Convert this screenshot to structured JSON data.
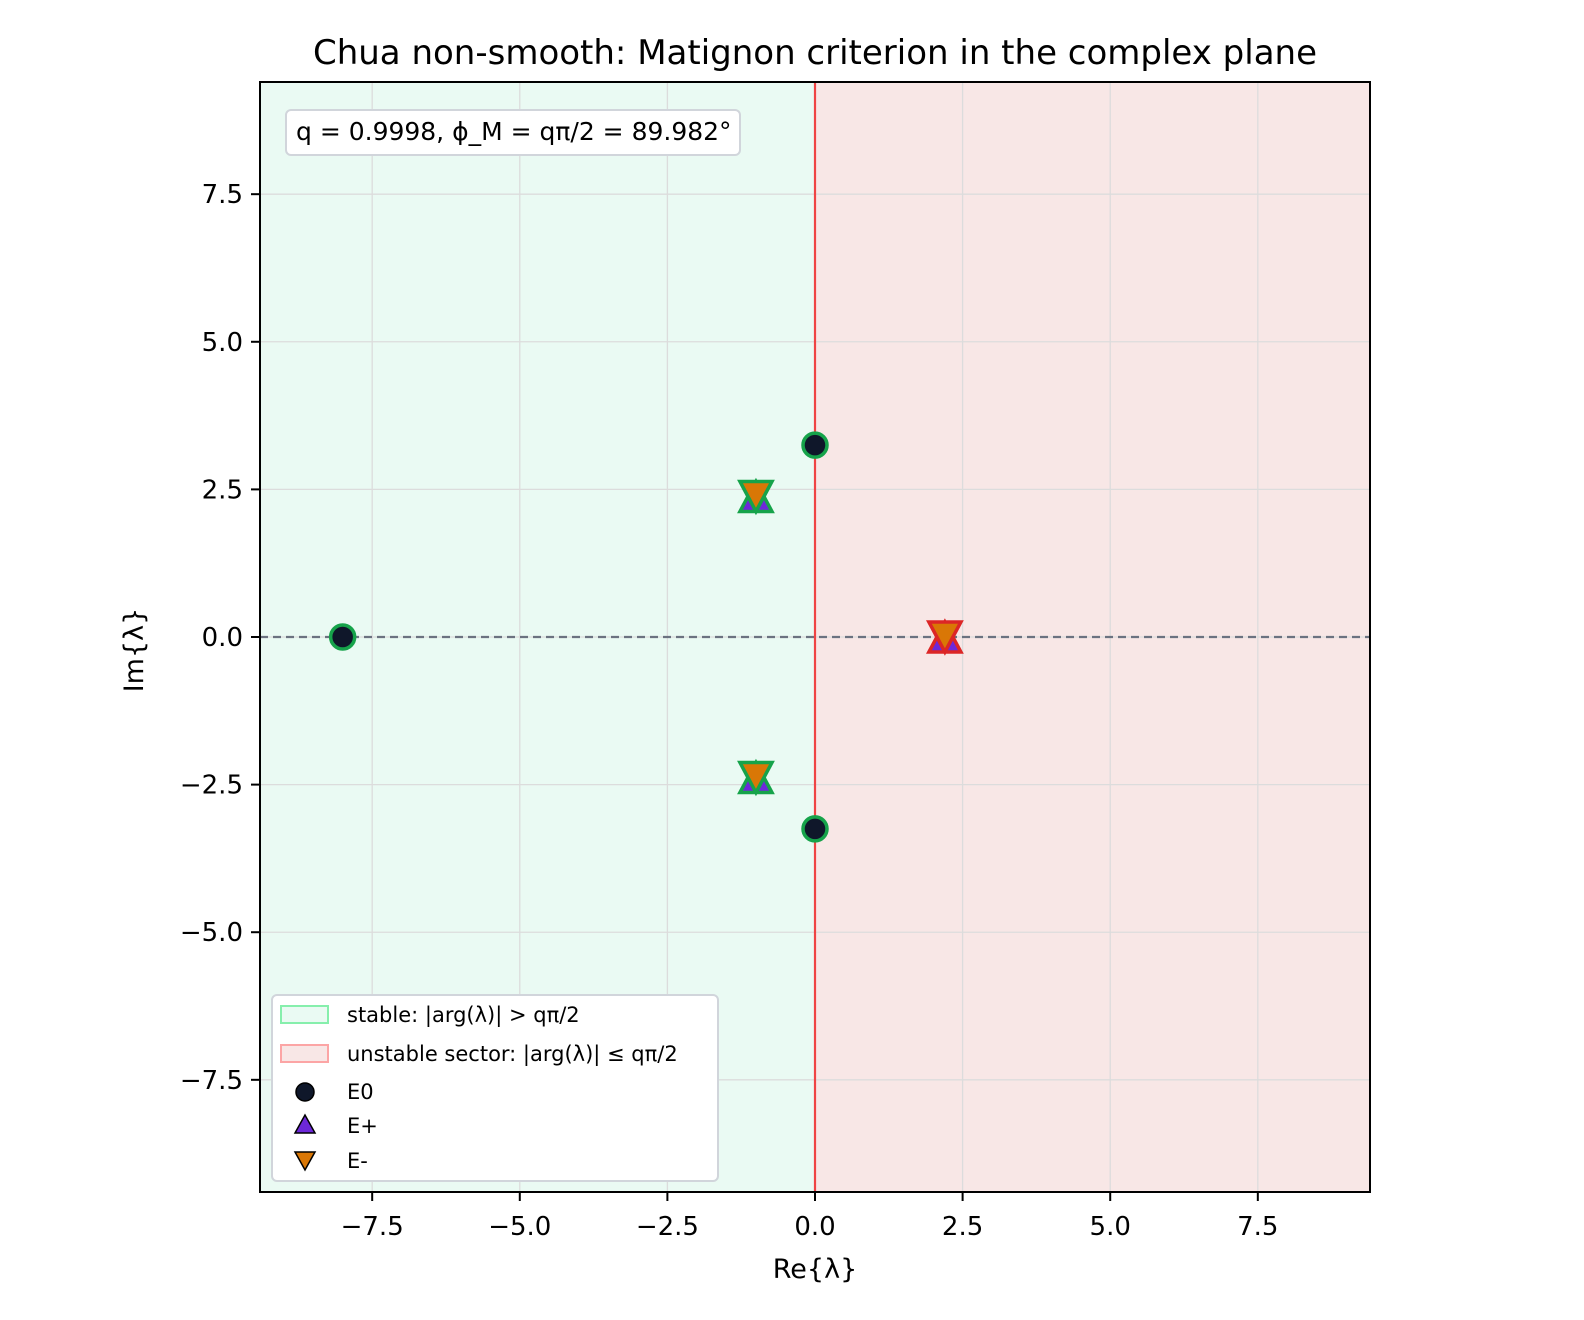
{
  "chart_data": {
    "type": "scatter",
    "title": "Chua non-smooth: Matignon criterion in the complex plane",
    "xlabel": "Re{λ}",
    "ylabel": "Im{λ}",
    "xlim": [
      -9.4,
      9.4
    ],
    "ylim": [
      -9.4,
      9.4
    ],
    "xticks": [
      -7.5,
      -5.0,
      -2.5,
      0.0,
      2.5,
      5.0,
      7.5
    ],
    "yticks": [
      -7.5,
      -5.0,
      -2.5,
      0.0,
      2.5,
      5.0,
      7.5
    ],
    "xtick_labels": [
      "−7.5",
      "−5.0",
      "−2.5",
      "0.0",
      "2.5",
      "5.0",
      "7.5"
    ],
    "ytick_labels": [
      "−7.5",
      "−5.0",
      "−2.5",
      "0.0",
      "2.5",
      "5.0",
      "7.5"
    ],
    "grid": true,
    "annotation": "q = 0.9998, ϕ_M = qπ/2 = 89.982°",
    "regions": [
      {
        "name": "stable",
        "label": "stable: |arg(λ)| > qπ/2",
        "fill": "#eafaf3",
        "edge": "#86efac"
      },
      {
        "name": "unstable",
        "label": "unstable sector: |arg(λ)| ≤ qπ/2",
        "fill": "#f8e7e6",
        "edge": "#fca5a5"
      }
    ],
    "boundary_color": "#ef4444",
    "series": [
      {
        "name": "E0",
        "marker": "circle",
        "fill": "#0f172a",
        "points": [
          {
            "x": -8.0,
            "y": 0.0,
            "stable": true
          },
          {
            "x": 0.0,
            "y": 3.25,
            "stable": true
          },
          {
            "x": 0.0,
            "y": -3.25,
            "stable": true
          }
        ]
      },
      {
        "name": "E+",
        "marker": "triangle-up",
        "fill": "#6d28d9",
        "points": [
          {
            "x": -1.0,
            "y": 2.38,
            "stable": true
          },
          {
            "x": -1.0,
            "y": -2.38,
            "stable": true
          },
          {
            "x": 2.2,
            "y": 0.0,
            "stable": false
          }
        ]
      },
      {
        "name": "E-",
        "marker": "triangle-down",
        "fill": "#d97706",
        "points": [
          {
            "x": -1.0,
            "y": 2.38,
            "stable": true
          },
          {
            "x": -1.0,
            "y": -2.38,
            "stable": true
          },
          {
            "x": 2.2,
            "y": 0.0,
            "stable": false
          }
        ]
      }
    ],
    "stable_edge": "#16a34a",
    "unstable_edge": "#dc2626",
    "legend_position": "lower-left"
  }
}
